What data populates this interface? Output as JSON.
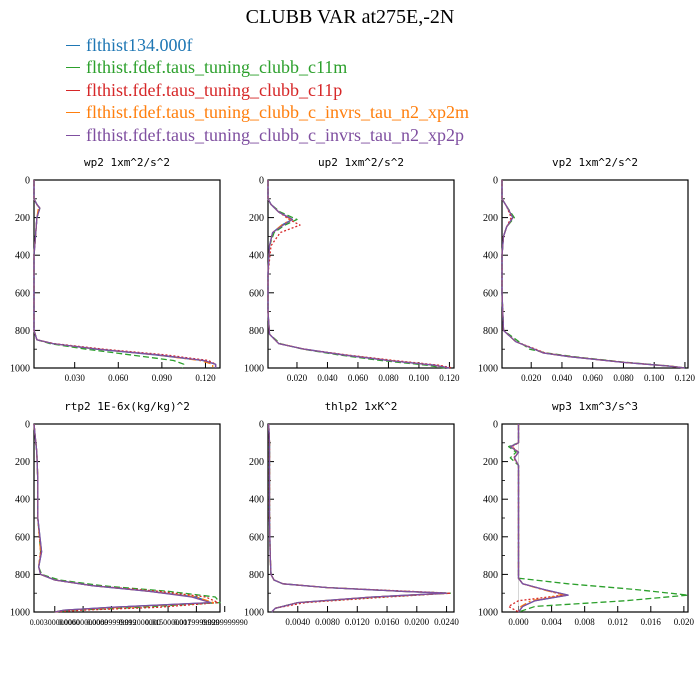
{
  "figure_title": "CLUBB VAR at275E,-2N",
  "legend": [
    {
      "label": "flthist134.000f",
      "color": "#1f77b4"
    },
    {
      "label": "flthist.fdef.taus_tuning_clubb_c11m",
      "color": "#2ca02c"
    },
    {
      "label": "flthist.fdef.taus_tuning_clubb_c11p",
      "color": "#d62728"
    },
    {
      "label": "flthist.fdef.taus_tuning_clubb_c_invrs_tau_n2_xp2m",
      "color": "#ff7f0e"
    },
    {
      "label": "flthist.fdef.taus_tuning_clubb_c_invrs_tau_n2_xp2p",
      "color": "#7f4fa0"
    }
  ],
  "chart_data": [
    {
      "type": "line",
      "title": "wp2  1xm^2/s^2",
      "ylim": [
        1000,
        0
      ],
      "yticks": [
        "0",
        "200",
        "400",
        "600",
        "800",
        "1000"
      ],
      "xlim": [
        0.002,
        0.13
      ],
      "xticks": [
        "0.030",
        "0.060",
        "0.090",
        "0.120"
      ],
      "y": [
        0,
        100,
        130,
        150,
        200,
        300,
        400,
        500,
        600,
        700,
        800,
        850,
        870,
        900,
        930,
        960,
        980,
        1000
      ],
      "series": [
        {
          "values": [
            0.002,
            0.002,
            0.004,
            0.006,
            0.004,
            0.003,
            0.002,
            0.002,
            0.002,
            0.002,
            0.002,
            0.004,
            0.015,
            0.045,
            0.085,
            0.118,
            0.127,
            0.127
          ]
        },
        {
          "values": [
            0.002,
            0.002,
            0.004,
            0.006,
            0.004,
            0.003,
            0.002,
            0.002,
            0.002,
            0.002,
            0.002,
            0.004,
            0.013,
            0.038,
            0.068,
            0.098,
            0.105,
            0.104
          ]
        },
        {
          "values": [
            0.002,
            0.002,
            0.004,
            0.006,
            0.004,
            0.003,
            0.002,
            0.002,
            0.002,
            0.002,
            0.002,
            0.004,
            0.016,
            0.05,
            0.092,
            0.122,
            0.127,
            0.127
          ]
        },
        {
          "values": [
            0.002,
            0.002,
            0.004,
            0.005,
            0.004,
            0.003,
            0.002,
            0.002,
            0.002,
            0.002,
            0.002,
            0.004,
            0.015,
            0.046,
            0.086,
            0.116,
            0.125,
            0.125
          ]
        },
        {
          "values": [
            0.002,
            0.002,
            0.004,
            0.006,
            0.004,
            0.003,
            0.002,
            0.002,
            0.002,
            0.002,
            0.002,
            0.004,
            0.015,
            0.046,
            0.087,
            0.119,
            0.127,
            0.127
          ]
        }
      ]
    },
    {
      "type": "line",
      "title": "up2  1xm^2/s^2",
      "ylim": [
        1000,
        0
      ],
      "yticks": [
        "0",
        "200",
        "400",
        "600",
        "800",
        "1000"
      ],
      "xlim": [
        0.001,
        0.123
      ],
      "xticks": [
        "0.020",
        "0.040",
        "0.060",
        "0.080",
        "0.100",
        "0.120"
      ],
      "y": [
        0,
        100,
        130,
        170,
        210,
        240,
        280,
        350,
        500,
        700,
        820,
        870,
        900,
        930,
        960,
        985,
        1000
      ],
      "series": [
        {
          "values": [
            0.001,
            0.001,
            0.003,
            0.008,
            0.017,
            0.01,
            0.004,
            0.002,
            0.001,
            0.001,
            0.002,
            0.008,
            0.025,
            0.05,
            0.08,
            0.11,
            0.12
          ]
        },
        {
          "values": [
            0.001,
            0.001,
            0.003,
            0.009,
            0.02,
            0.012,
            0.005,
            0.002,
            0.001,
            0.001,
            0.002,
            0.009,
            0.024,
            0.047,
            0.075,
            0.105,
            0.117
          ]
        },
        {
          "values": [
            0.001,
            0.001,
            0.003,
            0.008,
            0.015,
            0.022,
            0.009,
            0.003,
            0.001,
            0.001,
            0.002,
            0.008,
            0.025,
            0.052,
            0.084,
            0.113,
            0.122
          ]
        },
        {
          "values": [
            0.001,
            0.001,
            0.003,
            0.008,
            0.016,
            0.01,
            0.004,
            0.002,
            0.001,
            0.001,
            0.002,
            0.008,
            0.025,
            0.05,
            0.081,
            0.11,
            0.12
          ]
        },
        {
          "values": [
            0.001,
            0.001,
            0.003,
            0.008,
            0.017,
            0.011,
            0.004,
            0.002,
            0.001,
            0.001,
            0.002,
            0.008,
            0.025,
            0.05,
            0.08,
            0.11,
            0.12
          ]
        }
      ]
    },
    {
      "type": "line",
      "title": "vp2  1xm^2/s^2",
      "ylim": [
        1000,
        0
      ],
      "yticks": [
        "0",
        "200",
        "400",
        "600",
        "800",
        "1000"
      ],
      "xlim": [
        0.001,
        0.122
      ],
      "xticks": [
        "0.020",
        "0.040",
        "0.060",
        "0.080",
        "0.100",
        "0.120"
      ],
      "y": [
        0,
        100,
        140,
        200,
        250,
        300,
        400,
        600,
        800,
        860,
        900,
        920,
        940,
        970,
        990,
        1000
      ],
      "series": [
        {
          "values": [
            0.001,
            0.001,
            0.004,
            0.008,
            0.004,
            0.002,
            0.001,
            0.001,
            0.002,
            0.01,
            0.022,
            0.028,
            0.045,
            0.08,
            0.11,
            0.12
          ]
        },
        {
          "values": [
            0.001,
            0.001,
            0.004,
            0.009,
            0.004,
            0.002,
            0.001,
            0.001,
            0.002,
            0.012,
            0.019,
            0.03,
            0.048,
            0.082,
            0.111,
            0.12
          ]
        },
        {
          "values": [
            0.001,
            0.001,
            0.004,
            0.007,
            0.004,
            0.002,
            0.001,
            0.001,
            0.002,
            0.01,
            0.023,
            0.029,
            0.046,
            0.081,
            0.11,
            0.12
          ]
        },
        {
          "values": [
            0.001,
            0.001,
            0.004,
            0.008,
            0.004,
            0.002,
            0.001,
            0.001,
            0.002,
            0.01,
            0.022,
            0.028,
            0.045,
            0.08,
            0.11,
            0.12
          ]
        },
        {
          "values": [
            0.001,
            0.001,
            0.004,
            0.008,
            0.004,
            0.002,
            0.001,
            0.001,
            0.002,
            0.01,
            0.022,
            0.028,
            0.045,
            0.08,
            0.11,
            0.12
          ]
        }
      ]
    },
    {
      "type": "line",
      "title": "rtp2  1E-6x(kg/kg)^2",
      "ylim": [
        1000,
        0
      ],
      "yticks": [
        "0",
        "200",
        "400",
        "600",
        "800",
        "1000"
      ],
      "xlim": [
        0.0008,
        0.0205
      ],
      "xticks": [
        "0.00300000000",
        "0.00600000000",
        "0.00899999999",
        "0.012000000",
        "0.0150000001",
        "0.0179999999",
        "0.0209999990"
      ],
      "y": [
        0,
        50,
        150,
        300,
        500,
        680,
        760,
        800,
        830,
        860,
        890,
        920,
        950,
        975,
        990,
        1000
      ],
      "series": [
        {
          "values": [
            0.0008,
            0.0009,
            0.0011,
            0.0012,
            0.0012,
            0.0016,
            0.0013,
            0.0015,
            0.003,
            0.007,
            0.013,
            0.018,
            0.0195,
            0.009,
            0.004,
            0.003
          ]
        },
        {
          "values": [
            0.0008,
            0.0009,
            0.0011,
            0.0012,
            0.0012,
            0.0015,
            0.0013,
            0.0016,
            0.0035,
            0.008,
            0.015,
            0.02,
            0.0205,
            0.012,
            0.005,
            0.003
          ]
        },
        {
          "values": [
            0.0008,
            0.0009,
            0.0011,
            0.0012,
            0.0012,
            0.0015,
            0.0013,
            0.0015,
            0.003,
            0.007,
            0.014,
            0.019,
            0.0203,
            0.014,
            0.006,
            0.003
          ]
        },
        {
          "values": [
            0.0008,
            0.0009,
            0.0011,
            0.0012,
            0.0012,
            0.0015,
            0.0013,
            0.0015,
            0.003,
            0.007,
            0.013,
            0.018,
            0.0198,
            0.01,
            0.004,
            0.003
          ]
        },
        {
          "values": [
            0.0008,
            0.0009,
            0.0011,
            0.0012,
            0.0012,
            0.0016,
            0.0013,
            0.0015,
            0.003,
            0.007,
            0.013,
            0.0175,
            0.0195,
            0.009,
            0.004,
            0.003
          ]
        }
      ]
    },
    {
      "type": "line",
      "title": "thlp2  1xK^2",
      "ylim": [
        1000,
        0
      ],
      "yticks": [
        "0",
        "200",
        "400",
        "600",
        "800",
        "1000"
      ],
      "xlim": [
        0.0,
        0.025
      ],
      "xticks": [
        "0.0040",
        "0.0080",
        "0.0120",
        "0.0160",
        "0.0200",
        "0.0240"
      ],
      "y": [
        0,
        100,
        300,
        500,
        700,
        800,
        830,
        850,
        870,
        890,
        900,
        920,
        950,
        980,
        1000
      ],
      "series": [
        {
          "values": [
            0.0001,
            0.0002,
            0.0002,
            0.0002,
            0.0003,
            0.0004,
            0.0008,
            0.002,
            0.008,
            0.018,
            0.024,
            0.014,
            0.004,
            0.001,
            0.0005
          ]
        },
        {
          "values": [
            0.0001,
            0.0002,
            0.0002,
            0.0002,
            0.0003,
            0.0004,
            0.0008,
            0.002,
            0.008,
            0.018,
            0.0245,
            0.015,
            0.004,
            0.001,
            0.0005
          ]
        },
        {
          "values": [
            0.0001,
            0.0002,
            0.0002,
            0.0002,
            0.0003,
            0.0004,
            0.0008,
            0.002,
            0.008,
            0.019,
            0.0245,
            0.016,
            0.005,
            0.001,
            0.0005
          ]
        },
        {
          "values": [
            0.0001,
            0.0002,
            0.0002,
            0.0002,
            0.0003,
            0.0004,
            0.0008,
            0.002,
            0.008,
            0.018,
            0.024,
            0.014,
            0.004,
            0.001,
            0.0005
          ]
        },
        {
          "values": [
            0.0001,
            0.0002,
            0.0002,
            0.0002,
            0.0003,
            0.0004,
            0.0008,
            0.002,
            0.008,
            0.018,
            0.024,
            0.014,
            0.004,
            0.001,
            0.0005
          ]
        }
      ]
    },
    {
      "type": "line",
      "title": "wp3  1xm^3/s^3",
      "ylim": [
        1000,
        0
      ],
      "yticks": [
        "0",
        "200",
        "400",
        "600",
        "800",
        "1000"
      ],
      "xlim": [
        -0.002,
        0.0205
      ],
      "xticks": [
        "0.000",
        "0.004",
        "0.008",
        "0.012",
        "0.016",
        "0.020"
      ],
      "y": [
        0,
        100,
        120,
        150,
        180,
        220,
        300,
        500,
        700,
        820,
        850,
        880,
        910,
        940,
        970,
        1000
      ],
      "series": [
        {
          "values": [
            0.0,
            0.0,
            -0.001,
            0.0,
            -0.0005,
            0.0,
            0.0,
            0.0,
            0.0,
            0.0,
            0.0005,
            0.003,
            0.006,
            0.002,
            0.0005,
            0.0
          ]
        },
        {
          "values": [
            0.0,
            0.0,
            -0.0012,
            -0.0003,
            -0.001,
            0.0,
            0.0,
            0.0,
            0.0,
            0.0,
            0.006,
            0.014,
            0.0205,
            0.013,
            0.002,
            0.0
          ]
        },
        {
          "values": [
            0.0,
            0.0,
            -0.0008,
            0.0,
            -0.0006,
            0.0,
            0.0,
            0.0,
            0.0,
            0.0,
            0.0005,
            0.003,
            0.0055,
            0.0,
            -0.0012,
            0.0
          ]
        },
        {
          "values": [
            0.0,
            0.0,
            -0.001,
            0.0,
            -0.0005,
            0.0,
            0.0,
            0.0,
            0.0,
            0.0,
            0.0005,
            0.0028,
            0.0055,
            0.0015,
            0.0003,
            0.0
          ]
        },
        {
          "values": [
            0.0,
            0.0,
            -0.001,
            0.0,
            -0.0005,
            0.0,
            0.0,
            0.0,
            0.0,
            0.0,
            0.0005,
            0.003,
            0.006,
            0.002,
            0.0005,
            0.0
          ]
        }
      ]
    }
  ]
}
